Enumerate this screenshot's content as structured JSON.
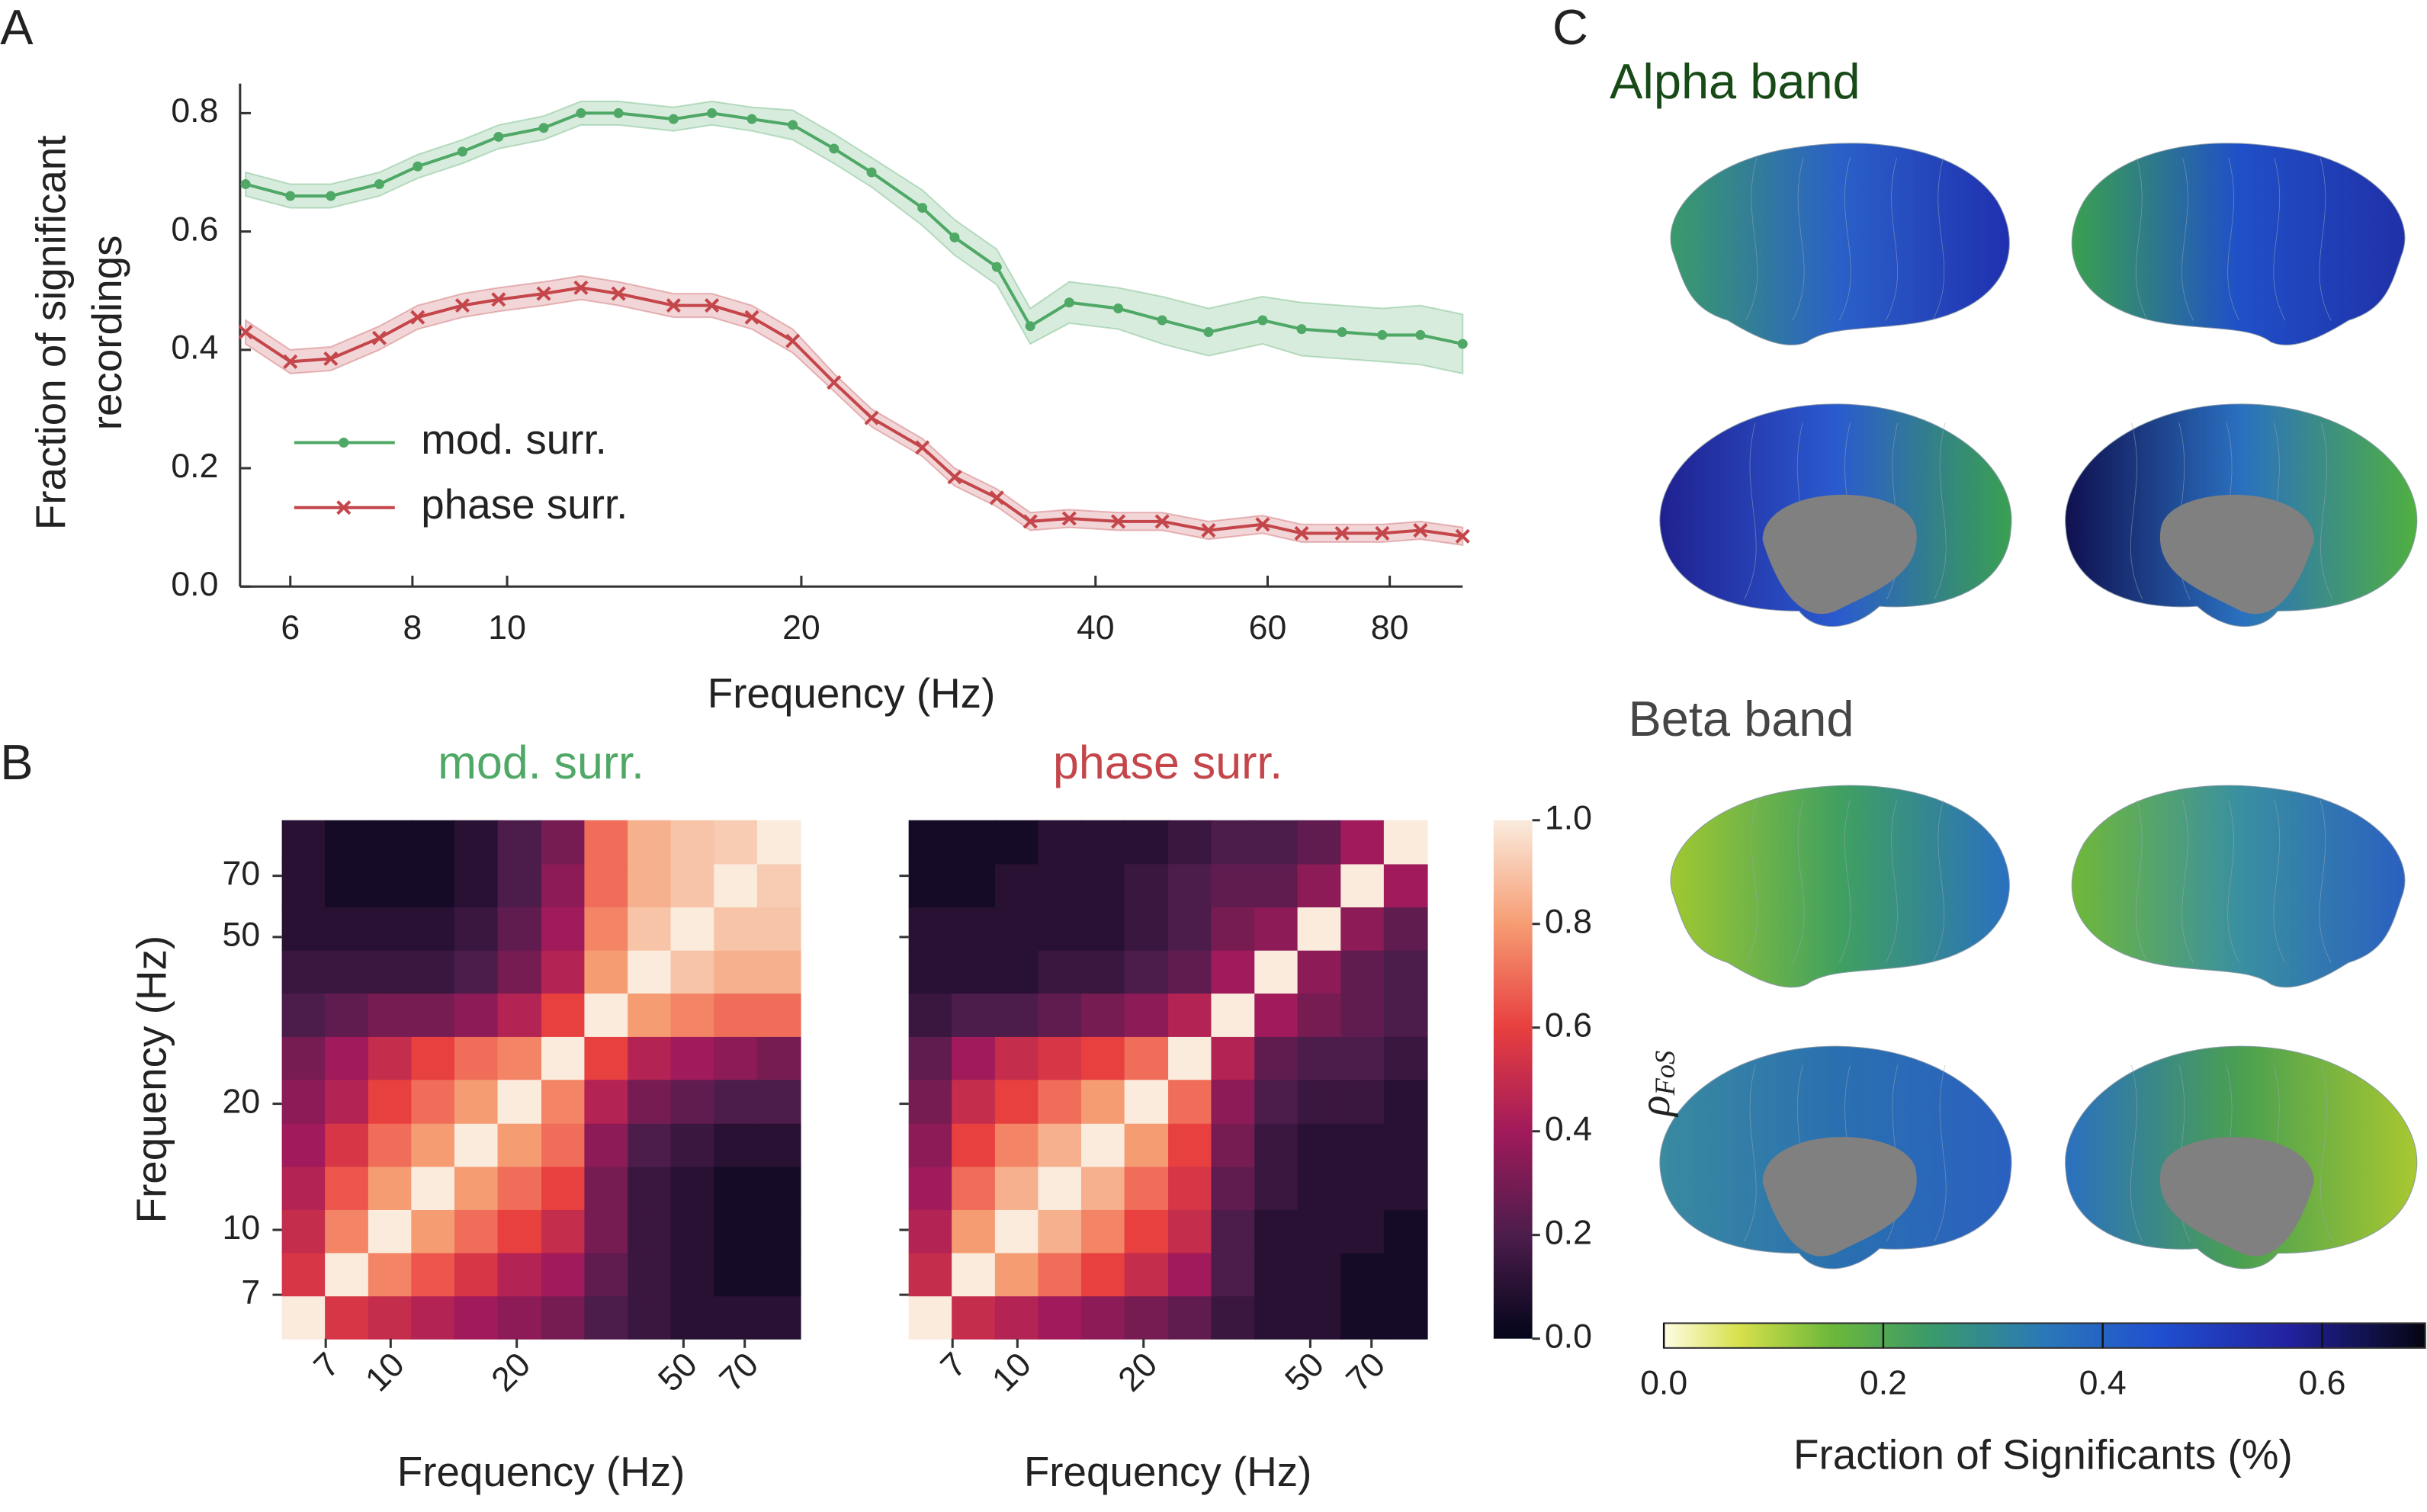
{
  "panel_labels": [
    "A",
    "B",
    "C"
  ],
  "chart_data": [
    {
      "type": "line",
      "xlabel": "Frequency (Hz)",
      "ylabel": [
        "Fraction of significant",
        "recordings"
      ],
      "xscale": "log",
      "xlim": [
        5.33,
        95
      ],
      "ylim": [
        0,
        0.85
      ],
      "xticks": [
        6,
        8,
        10,
        20,
        40,
        60,
        80
      ],
      "yticks": [
        {
          "value": 0,
          "label": "0.0"
        },
        0.2,
        0.4,
        0.6,
        0.8
      ],
      "x": [
        5.4,
        6,
        6.6,
        7.4,
        8.1,
        9.0,
        9.8,
        10.9,
        11.9,
        13.0,
        14.8,
        16.2,
        17.8,
        19.6,
        21.6,
        23.6,
        26.6,
        28.7,
        31.7,
        34.3,
        37.6,
        42.2,
        46.8,
        52.2,
        59.3,
        65,
        71.5,
        78.6,
        86,
        95
      ],
      "series": [
        {
          "name": "mod. surr.",
          "color": "#4fa866",
          "marker": "o",
          "values": [
            0.68,
            0.66,
            0.66,
            0.68,
            0.71,
            0.735,
            0.76,
            0.775,
            0.8,
            0.8,
            0.79,
            0.8,
            0.79,
            0.78,
            0.74,
            0.7,
            0.64,
            0.59,
            0.54,
            0.44,
            0.48,
            0.47,
            0.45,
            0.43,
            0.45,
            0.435,
            0.43,
            0.425,
            0.425,
            0.41
          ],
          "errors": [
            0.02,
            0.02,
            0.02,
            0.02,
            0.02,
            0.02,
            0.02,
            0.02,
            0.02,
            0.02,
            0.02,
            0.02,
            0.02,
            0.025,
            0.025,
            0.025,
            0.03,
            0.03,
            0.03,
            0.03,
            0.035,
            0.035,
            0.04,
            0.04,
            0.04,
            0.045,
            0.045,
            0.045,
            0.05,
            0.05
          ]
        },
        {
          "name": "phase surr.",
          "color": "#c4464b",
          "marker": "x",
          "values": [
            0.43,
            0.38,
            0.385,
            0.42,
            0.455,
            0.475,
            0.485,
            0.495,
            0.505,
            0.495,
            0.475,
            0.475,
            0.455,
            0.415,
            0.345,
            0.285,
            0.235,
            0.185,
            0.15,
            0.11,
            0.115,
            0.11,
            0.11,
            0.095,
            0.105,
            0.09,
            0.09,
            0.09,
            0.095,
            0.085
          ],
          "errors": [
            0.02,
            0.02,
            0.02,
            0.02,
            0.02,
            0.02,
            0.02,
            0.02,
            0.02,
            0.02,
            0.02,
            0.02,
            0.02,
            0.02,
            0.015,
            0.015,
            0.015,
            0.015,
            0.015,
            0.015,
            0.015,
            0.015,
            0.015,
            0.015,
            0.015,
            0.015,
            0.015,
            0.015,
            0.015,
            0.015
          ]
        }
      ],
      "legend": "lower left"
    },
    {
      "type": "heatmap",
      "title": "mod. surr.",
      "title_color": "#4fa866",
      "xlabel": "Frequency (Hz)",
      "ylabel": "Frequency (Hz)",
      "scale": "log",
      "bins": [
        5.5,
        6.97,
        8.84,
        11.2,
        14.2,
        18.0,
        22.9,
        29.0,
        36.8,
        46.6,
        59.1,
        74.9,
        95
      ],
      "ticks": [
        7,
        10,
        20,
        50,
        70
      ],
      "matrix": [
        [
          1,
          0.55,
          0.5,
          0.45,
          0.4,
          0.35,
          0.3,
          0.2,
          0.15,
          0.1,
          0.1,
          0.1
        ],
        [
          0.55,
          1,
          0.75,
          0.65,
          0.55,
          0.45,
          0.4,
          0.25,
          0.15,
          0.1,
          0.05,
          0.05
        ],
        [
          0.5,
          0.75,
          1,
          0.8,
          0.7,
          0.6,
          0.5,
          0.3,
          0.15,
          0.1,
          0.05,
          0.05
        ],
        [
          0.45,
          0.65,
          0.8,
          1,
          0.8,
          0.7,
          0.6,
          0.3,
          0.15,
          0.1,
          0.05,
          0.05
        ],
        [
          0.4,
          0.55,
          0.7,
          0.8,
          1,
          0.8,
          0.7,
          0.35,
          0.2,
          0.15,
          0.1,
          0.1
        ],
        [
          0.35,
          0.45,
          0.6,
          0.7,
          0.8,
          1,
          0.75,
          0.45,
          0.3,
          0.25,
          0.2,
          0.2
        ],
        [
          0.3,
          0.4,
          0.5,
          0.6,
          0.7,
          0.75,
          1,
          0.6,
          0.45,
          0.4,
          0.35,
          0.3
        ],
        [
          0.2,
          0.25,
          0.3,
          0.3,
          0.35,
          0.45,
          0.6,
          1,
          0.8,
          0.75,
          0.7,
          0.7
        ],
        [
          0.15,
          0.15,
          0.15,
          0.15,
          0.2,
          0.3,
          0.45,
          0.8,
          1,
          0.9,
          0.85,
          0.85
        ],
        [
          0.1,
          0.1,
          0.1,
          0.1,
          0.15,
          0.25,
          0.4,
          0.75,
          0.9,
          1,
          0.9,
          0.9
        ],
        [
          0.1,
          0.05,
          0.05,
          0.05,
          0.1,
          0.2,
          0.35,
          0.7,
          0.85,
          0.9,
          1,
          0.92
        ],
        [
          0.1,
          0.05,
          0.05,
          0.05,
          0.1,
          0.2,
          0.3,
          0.7,
          0.85,
          0.9,
          0.92,
          1
        ]
      ]
    },
    {
      "type": "heatmap",
      "title": "phase surr.",
      "title_color": "#c4464b",
      "xlabel": "Frequency (Hz)",
      "scale": "log",
      "bins": [
        5.5,
        6.97,
        8.84,
        11.2,
        14.2,
        18.0,
        22.9,
        29.0,
        36.8,
        46.6,
        59.1,
        74.9,
        95
      ],
      "ticks": [
        7,
        10,
        20,
        50,
        70
      ],
      "matrix": [
        [
          1,
          0.5,
          0.45,
          0.4,
          0.35,
          0.3,
          0.25,
          0.15,
          0.1,
          0.1,
          0.05,
          0.05
        ],
        [
          0.5,
          1,
          0.8,
          0.7,
          0.6,
          0.5,
          0.4,
          0.2,
          0.1,
          0.1,
          0.05,
          0.05
        ],
        [
          0.45,
          0.8,
          1,
          0.85,
          0.75,
          0.6,
          0.5,
          0.2,
          0.1,
          0.1,
          0.1,
          0.05
        ],
        [
          0.4,
          0.7,
          0.85,
          1,
          0.85,
          0.7,
          0.55,
          0.25,
          0.15,
          0.1,
          0.1,
          0.1
        ],
        [
          0.35,
          0.6,
          0.75,
          0.85,
          1,
          0.8,
          0.6,
          0.3,
          0.15,
          0.1,
          0.1,
          0.1
        ],
        [
          0.3,
          0.5,
          0.6,
          0.7,
          0.8,
          1,
          0.7,
          0.35,
          0.2,
          0.15,
          0.15,
          0.1
        ],
        [
          0.25,
          0.4,
          0.5,
          0.55,
          0.6,
          0.7,
          1,
          0.45,
          0.25,
          0.2,
          0.2,
          0.15
        ],
        [
          0.15,
          0.2,
          0.2,
          0.25,
          0.3,
          0.35,
          0.45,
          1,
          0.4,
          0.3,
          0.25,
          0.2
        ],
        [
          0.1,
          0.1,
          0.1,
          0.15,
          0.15,
          0.2,
          0.25,
          0.4,
          1,
          0.35,
          0.25,
          0.2
        ],
        [
          0.1,
          0.1,
          0.1,
          0.1,
          0.1,
          0.15,
          0.2,
          0.3,
          0.35,
          1,
          0.35,
          0.25
        ],
        [
          0.05,
          0.05,
          0.1,
          0.1,
          0.1,
          0.15,
          0.2,
          0.25,
          0.25,
          0.35,
          1,
          0.4
        ],
        [
          0.05,
          0.05,
          0.05,
          0.1,
          0.1,
          0.1,
          0.15,
          0.2,
          0.2,
          0.25,
          0.4,
          1
        ]
      ],
      "colorbar": {
        "lim": [
          0,
          1
        ],
        "ticks": [
          {
            "value": 0,
            "label": "0.0"
          },
          0.2,
          0.4,
          0.6,
          0.8,
          {
            "value": 1,
            "label": "1.0"
          }
        ]
      }
    },
    {
      "type": "brain-map",
      "panels": [
        {
          "title": "Alpha band",
          "title_color": "#174a17"
        },
        {
          "title": "Beta band",
          "title_color": "#454545"
        }
      ],
      "side_label": {
        "symbol": "ρ",
        "subscript": "FoS"
      },
      "colorbar": {
        "lim": [
          0,
          0.694
        ],
        "ticks": [
          {
            "value": 0,
            "label": "0.0"
          },
          0.2,
          0.4,
          0.6
        ],
        "label": "Fraction of Significants (%)"
      }
    }
  ]
}
